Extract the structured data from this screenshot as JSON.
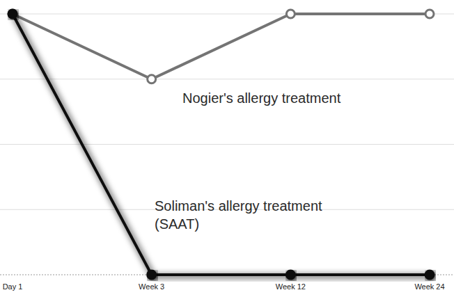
{
  "chart_data": {
    "type": "line",
    "categories": [
      "Day 1",
      "Week 3",
      "Week 12",
      "Week 24"
    ],
    "series": [
      {
        "name": "Nogier's allergy treatment",
        "color": "#747474",
        "marker": "circle",
        "values": [
          4,
          3,
          4,
          4
        ]
      },
      {
        "name": "Soliman's allergy treatment (SAAT)",
        "color": "#111111",
        "marker": "circle",
        "values": [
          4,
          0,
          0,
          0
        ]
      }
    ],
    "ylim": [
      0,
      4
    ],
    "yticks": [
      0,
      1,
      2,
      3,
      4
    ],
    "grid": true,
    "tick_labels": "x"
  }
}
